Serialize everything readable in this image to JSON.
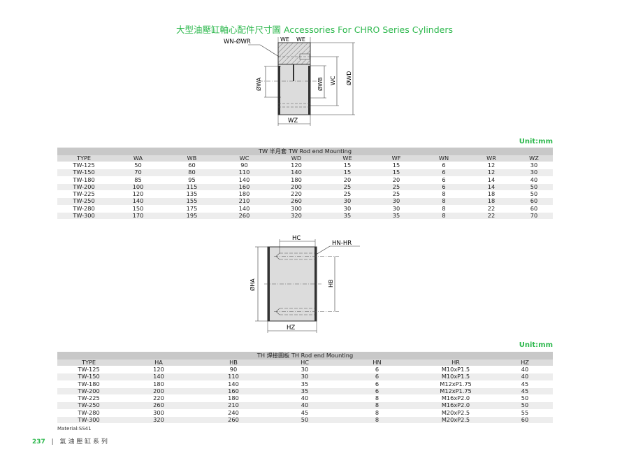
{
  "title": "大型油壓缸軸心配件尺寸圖 Accessories For CHRO Series Cylinders",
  "drawing_tw": {
    "labels": {
      "wn_wr": "WN-ØWR",
      "we1": "WE",
      "we2": "WE",
      "wa": "ØWA",
      "wb": "ØWB",
      "wc": "WC",
      "wd": "ØWD",
      "wz": "WZ"
    }
  },
  "drawing_th": {
    "labels": {
      "hc": "HC",
      "hn_hr": "HN-HR",
      "ha": "ØHA",
      "hb": "HB",
      "hz": "HZ"
    }
  },
  "table_tw": {
    "unit": "Unit:mm",
    "caption": "TW 半月套 TW Rod end Mounting",
    "headers": [
      "TYPE",
      "WA",
      "WB",
      "WC",
      "WD",
      "WE",
      "WF",
      "WN",
      "WR",
      "WZ"
    ],
    "rows": [
      [
        "TW-125",
        "50",
        "60",
        "90",
        "120",
        "15",
        "15",
        "6",
        "12",
        "30"
      ],
      [
        "TW-150",
        "70",
        "80",
        "110",
        "140",
        "15",
        "15",
        "6",
        "12",
        "30"
      ],
      [
        "TW-180",
        "85",
        "95",
        "140",
        "180",
        "20",
        "20",
        "6",
        "14",
        "40"
      ],
      [
        "TW-200",
        "100",
        "115",
        "160",
        "200",
        "25",
        "25",
        "6",
        "14",
        "50"
      ],
      [
        "TW-225",
        "120",
        "135",
        "180",
        "220",
        "25",
        "25",
        "8",
        "18",
        "50"
      ],
      [
        "TW-250",
        "140",
        "155",
        "210",
        "260",
        "30",
        "30",
        "8",
        "18",
        "60"
      ],
      [
        "TW-280",
        "150",
        "175",
        "140",
        "300",
        "30",
        "30",
        "8",
        "22",
        "60"
      ],
      [
        "TW-300",
        "170",
        "195",
        "260",
        "320",
        "35",
        "35",
        "8",
        "22",
        "70"
      ]
    ]
  },
  "table_th": {
    "unit": "Unit:mm",
    "caption": "TH 焊接圓板 TH Rod end Mounting",
    "headers": [
      "TYPE",
      "HA",
      "HB",
      "HC",
      "HN",
      "HR",
      "HZ"
    ],
    "rows": [
      [
        "TW-125",
        "120",
        "90",
        "30",
        "6",
        "M10xP1.5",
        "40"
      ],
      [
        "TW-150",
        "140",
        "110",
        "30",
        "6",
        "M10xP1.5",
        "40"
      ],
      [
        "TW-180",
        "180",
        "140",
        "35",
        "6",
        "M12xP1.75",
        "45"
      ],
      [
        "TW-200",
        "200",
        "160",
        "35",
        "6",
        "M12xP1.75",
        "45"
      ],
      [
        "TW-225",
        "220",
        "180",
        "40",
        "8",
        "M16xP2.0",
        "50"
      ],
      [
        "TW-250",
        "260",
        "210",
        "40",
        "8",
        "M16xP2.0",
        "50"
      ],
      [
        "TW-280",
        "300",
        "240",
        "45",
        "8",
        "M20xP2.5",
        "55"
      ],
      [
        "TW-300",
        "320",
        "260",
        "50",
        "8",
        "M20xP2.5",
        "60"
      ]
    ],
    "material": "Material:SS41"
  },
  "footer": {
    "page_number": "237",
    "separator": "|",
    "series": "氣 油 壓 缸 系 列"
  },
  "colors": {
    "accent": "#2db84d",
    "caption_bg": "#c8c8c8",
    "header_bg": "#dcdcdc"
  }
}
